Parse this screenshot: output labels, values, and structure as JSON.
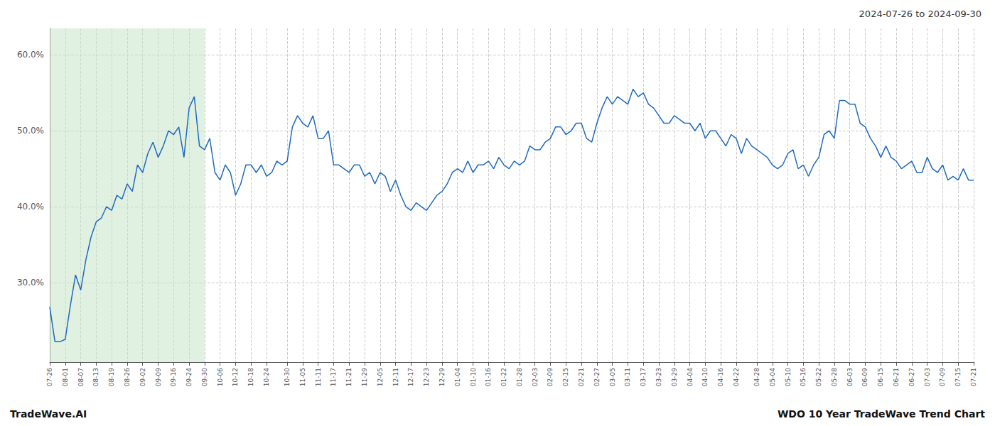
{
  "chart_data": {
    "type": "line",
    "title": "2024-07-26 to 2024-09-30",
    "footer_left": "TradeWave.AI",
    "footer_right": "WDO 10 Year TradeWave Trend Chart",
    "color": "#1f6bbf",
    "grid": true,
    "shade": {
      "start": "07-26",
      "end": "09-30",
      "color": "#c8e6c9"
    },
    "ylim": [
      0.195,
      0.635
    ],
    "yticks": [
      {
        "value": 0.3,
        "label": "30.0%"
      },
      {
        "value": 0.4,
        "label": "40.0%"
      },
      {
        "value": 0.5,
        "label": "50.0%"
      },
      {
        "value": 0.6,
        "label": "60.0%"
      }
    ],
    "categories": [
      "07-26",
      null,
      null,
      "08-01",
      null,
      null,
      "08-07",
      null,
      null,
      "08-13",
      null,
      null,
      "08-19",
      null,
      null,
      "08-26",
      null,
      null,
      "09-02",
      null,
      null,
      "09-09",
      null,
      null,
      "09-16",
      null,
      null,
      "09-24",
      null,
      null,
      "09-30",
      null,
      null,
      "10-06",
      null,
      null,
      "10-12",
      null,
      null,
      "10-18",
      null,
      null,
      "10-24",
      null,
      null,
      null,
      "10-30",
      null,
      null,
      "11-05",
      null,
      null,
      "11-11",
      null,
      null,
      "11-17",
      null,
      null,
      "11-21",
      null,
      null,
      "11-29",
      null,
      null,
      "12-05",
      null,
      null,
      "12-11",
      null,
      null,
      "12-17",
      null,
      null,
      "12-23",
      null,
      null,
      "12-29",
      null,
      null,
      "01-04",
      null,
      null,
      "01-10",
      null,
      null,
      "01-16",
      null,
      null,
      "01-22",
      null,
      null,
      "01-28",
      null,
      null,
      "02-03",
      null,
      null,
      "02-09",
      null,
      null,
      "02-15",
      null,
      null,
      "02-21",
      null,
      null,
      "02-27",
      null,
      null,
      "03-05",
      null,
      null,
      "03-11",
      null,
      null,
      "03-17",
      null,
      null,
      "03-23",
      null,
      null,
      "03-29",
      null,
      null,
      "04-04",
      null,
      null,
      "04-10",
      null,
      null,
      "04-16",
      null,
      null,
      "04-22",
      null,
      null,
      null,
      "04-28",
      null,
      null,
      "05-04",
      null,
      null,
      "05-10",
      null,
      null,
      "05-16",
      null,
      null,
      "05-22",
      null,
      null,
      "05-28",
      null,
      null,
      "06-03",
      null,
      null,
      "06-09",
      null,
      null,
      "06-15",
      null,
      null,
      "06-21",
      null,
      null,
      "06-27",
      null,
      null,
      "07-03",
      null,
      null,
      "07-09",
      null,
      null,
      "07-15",
      null,
      null,
      "07-21"
    ],
    "values": [
      0.268,
      0.222,
      0.222,
      0.225,
      0.27,
      0.31,
      0.29,
      0.33,
      0.36,
      0.38,
      0.385,
      0.4,
      0.395,
      0.415,
      0.41,
      0.43,
      0.42,
      0.455,
      0.445,
      0.47,
      0.485,
      0.465,
      0.48,
      0.5,
      0.495,
      0.505,
      0.465,
      0.53,
      0.545,
      0.48,
      0.475,
      0.49,
      0.445,
      0.435,
      0.455,
      0.445,
      0.415,
      0.43,
      0.455,
      0.455,
      0.445,
      0.455,
      0.44,
      0.445,
      0.46,
      0.455,
      0.46,
      0.505,
      0.52,
      0.51,
      0.505,
      0.52,
      0.49,
      0.49,
      0.5,
      0.455,
      0.455,
      0.45,
      0.445,
      0.455,
      0.455,
      0.44,
      0.445,
      0.43,
      0.445,
      0.44,
      0.42,
      0.435,
      0.415,
      0.4,
      0.395,
      0.405,
      0.4,
      0.395,
      0.405,
      0.415,
      0.42,
      0.43,
      0.445,
      0.45,
      0.445,
      0.46,
      0.445,
      0.455,
      0.455,
      0.46,
      0.45,
      0.465,
      0.455,
      0.45,
      0.46,
      0.455,
      0.46,
      0.48,
      0.475,
      0.475,
      0.485,
      0.49,
      0.505,
      0.505,
      0.495,
      0.5,
      0.51,
      0.51,
      0.49,
      0.485,
      0.51,
      0.53,
      0.545,
      0.535,
      0.545,
      0.54,
      0.535,
      0.555,
      0.545,
      0.55,
      0.535,
      0.53,
      0.52,
      0.51,
      0.51,
      0.52,
      0.515,
      0.51,
      0.51,
      0.5,
      0.51,
      0.49,
      0.5,
      0.5,
      0.49,
      0.48,
      0.495,
      0.49,
      0.47,
      0.49,
      0.48,
      0.475,
      0.47,
      0.465,
      0.455,
      0.45,
      0.455,
      0.47,
      0.475,
      0.45,
      0.455,
      0.44,
      0.455,
      0.465,
      0.495,
      0.5,
      0.49,
      0.54,
      0.54,
      0.535,
      0.535,
      0.51,
      0.505,
      0.49,
      0.48,
      0.465,
      0.48,
      0.465,
      0.46,
      0.45,
      0.455,
      0.46,
      0.445,
      0.445,
      0.465,
      0.45,
      0.445,
      0.455,
      0.435,
      0.44,
      0.435,
      0.45,
      0.435,
      0.435
    ]
  }
}
